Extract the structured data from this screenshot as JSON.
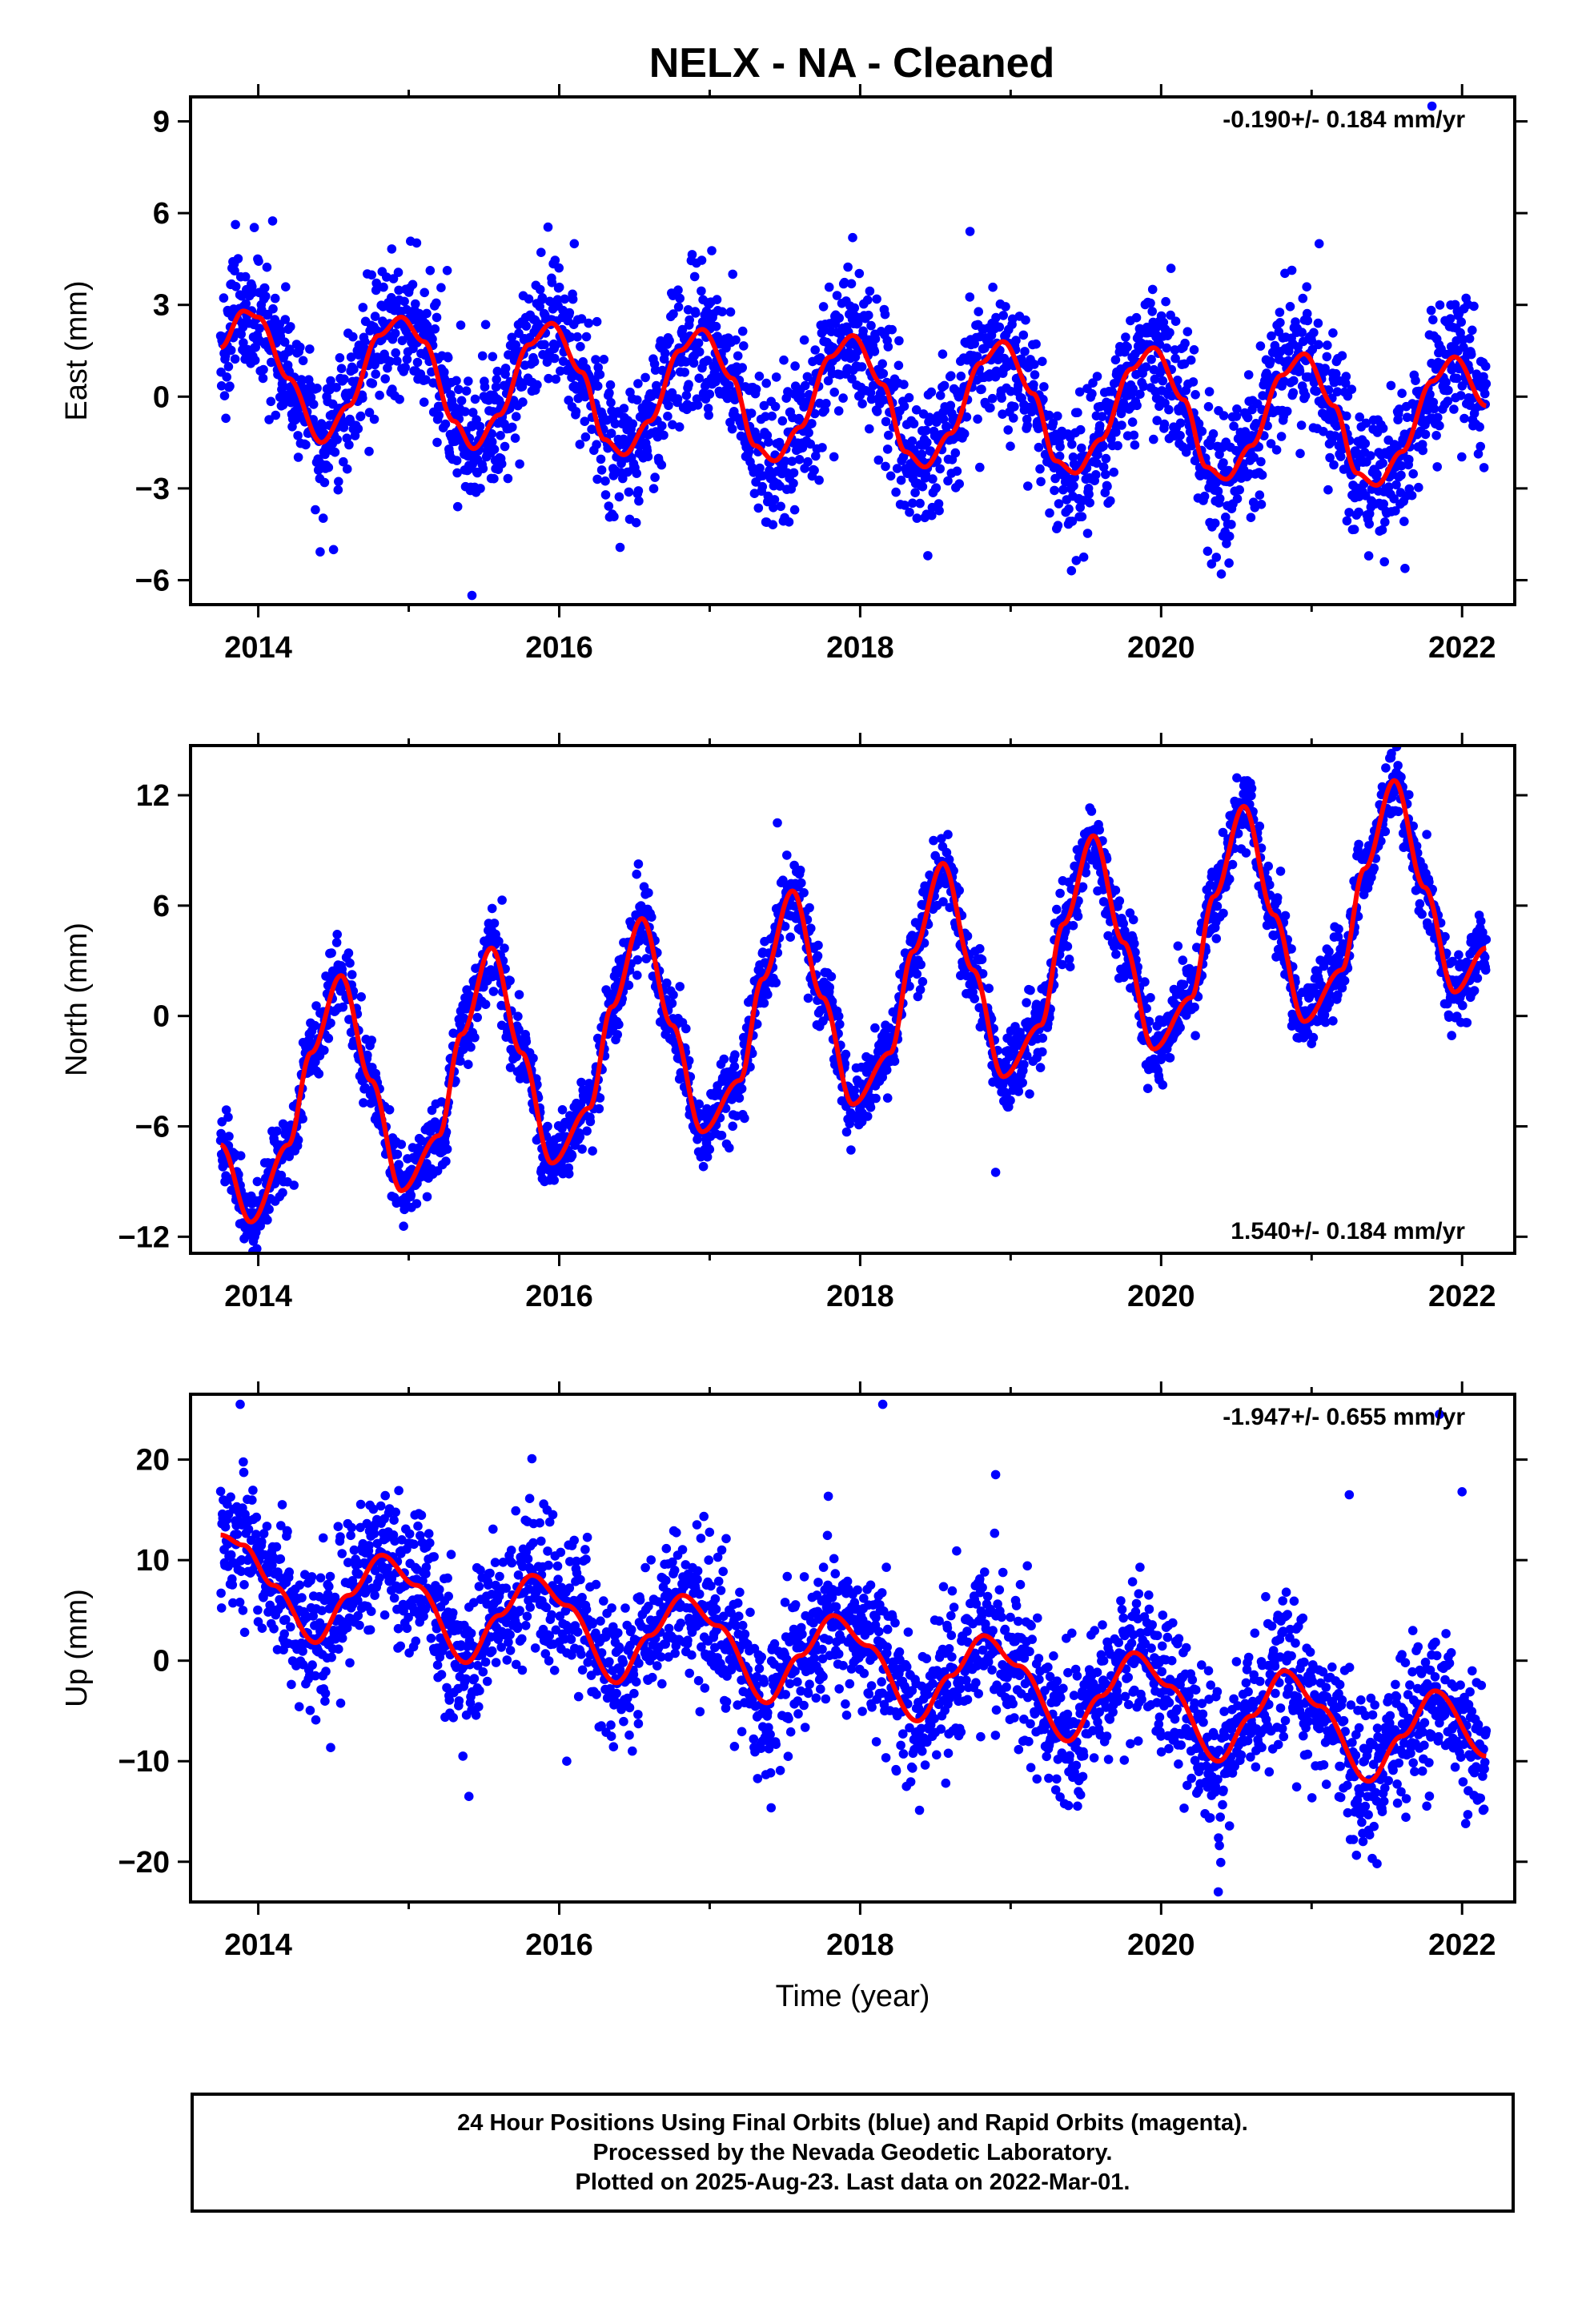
{
  "title": "NELX  - NA - Cleaned",
  "footer": {
    "lines": [
      "24 Hour Positions Using Final Orbits (blue) and Rapid Orbits (magenta).",
      "Processed by the Nevada Geodetic Laboratory.",
      "Plotted on 2025-Aug-23. Last data on 2022-Mar-01."
    ]
  },
  "colors": {
    "points": "#0000ff",
    "fit": "#ff0000",
    "axes": "#000000"
  },
  "chart_data": [
    {
      "type": "scatter",
      "panel": "east",
      "ylabel": "East (mm)",
      "xlabel": "",
      "xlim": [
        2013.55,
        2022.35
      ],
      "ylim": [
        -6.8,
        9.8
      ],
      "xticks": [
        2014,
        2016,
        2018,
        2020,
        2022
      ],
      "yticks": [
        -6,
        -3,
        0,
        3,
        6,
        9
      ],
      "ytick_labels": [
        "−6",
        "−3",
        "0",
        "3",
        "6",
        "9"
      ],
      "rate_label": "-0.190+/- 0.184 mm/yr",
      "rate_position": "top-right",
      "data_span": [
        2013.75,
        2022.16
      ],
      "series": [
        {
          "name": "",
          "kind": "fit",
          "x": [
            2013.75,
            2013.9,
            2014.0,
            2014.2,
            2014.42,
            2014.6,
            2014.8,
            2014.95,
            2015.1,
            2015.3,
            2015.43,
            2015.6,
            2015.8,
            2015.95,
            2016.15,
            2016.3,
            2016.43,
            2016.6,
            2016.8,
            2016.95,
            2017.15,
            2017.3,
            2017.43,
            2017.6,
            2017.8,
            2017.95,
            2018.15,
            2018.3,
            2018.43,
            2018.6,
            2018.8,
            2018.95,
            2019.15,
            2019.3,
            2019.43,
            2019.6,
            2019.8,
            2019.95,
            2020.15,
            2020.3,
            2020.43,
            2020.6,
            2020.8,
            2020.95,
            2021.15,
            2021.3,
            2021.43,
            2021.6,
            2021.8,
            2021.95,
            2022.16
          ],
          "y": [
            1.6,
            2.8,
            2.6,
            0.6,
            -1.5,
            -0.3,
            2.0,
            2.6,
            1.8,
            -0.8,
            -1.7,
            -0.6,
            1.7,
            2.4,
            0.8,
            -1.4,
            -1.9,
            -0.8,
            1.5,
            2.2,
            0.6,
            -1.6,
            -2.1,
            -1.0,
            1.3,
            2.0,
            0.4,
            -1.8,
            -2.3,
            -1.2,
            1.1,
            1.8,
            0.1,
            -2.1,
            -2.5,
            -1.4,
            0.9,
            1.6,
            -0.1,
            -2.3,
            -2.7,
            -1.6,
            0.7,
            1.4,
            -0.3,
            -2.5,
            -2.9,
            -1.8,
            0.5,
            1.3,
            -0.3
          ]
        }
      ],
      "scatter": {
        "name": "",
        "kind": "points",
        "noise_sd": 1.15,
        "outliers": [
          [
            2015.42,
            -6.5
          ],
          [
            2014.5,
            -5.0
          ],
          [
            2016.1,
            5.0
          ],
          [
            2017.95,
            5.2
          ],
          [
            2021.05,
            5.0
          ],
          [
            2020.4,
            -5.8
          ],
          [
            2021.8,
            9.5
          ],
          [
            2018.73,
            5.4
          ]
        ]
      }
    },
    {
      "type": "scatter",
      "panel": "north",
      "ylabel": "North (mm)",
      "xlabel": "",
      "xlim": [
        2013.55,
        2022.35
      ],
      "ylim": [
        -12.9,
        14.7
      ],
      "xticks": [
        2014,
        2016,
        2018,
        2020,
        2022
      ],
      "yticks": [
        -12,
        -6,
        0,
        6,
        12
      ],
      "ytick_labels": [
        "−12",
        "−6",
        "0",
        "6",
        "12"
      ],
      "rate_label": "1.540+/- 0.184 mm/yr",
      "rate_position": "bottom-right",
      "data_span": [
        2013.75,
        2022.16
      ],
      "series": [
        {
          "name": "",
          "kind": "fit",
          "x": [
            2013.75,
            2013.95,
            2014.2,
            2014.35,
            2014.55,
            2014.75,
            2014.95,
            2015.2,
            2015.35,
            2015.55,
            2015.75,
            2015.95,
            2016.2,
            2016.35,
            2016.55,
            2016.75,
            2016.95,
            2017.2,
            2017.35,
            2017.55,
            2017.75,
            2017.95,
            2018.2,
            2018.35,
            2018.55,
            2018.75,
            2018.95,
            2019.2,
            2019.35,
            2019.55,
            2019.75,
            2019.95,
            2020.2,
            2020.35,
            2020.55,
            2020.75,
            2020.95,
            2021.2,
            2021.35,
            2021.55,
            2021.75,
            2021.95,
            2022.16
          ],
          "y": [
            -7.0,
            -11.2,
            -7.0,
            -2.0,
            2.2,
            -3.5,
            -9.5,
            -6.5,
            -1.0,
            3.7,
            -2.0,
            -8.0,
            -5.0,
            0.5,
            5.3,
            -0.5,
            -6.3,
            -3.5,
            2.0,
            6.8,
            1.0,
            -4.8,
            -2.0,
            3.5,
            8.3,
            2.5,
            -3.3,
            -0.5,
            5.0,
            9.8,
            4.0,
            -1.8,
            1.0,
            6.5,
            11.4,
            5.5,
            -0.3,
            2.5,
            8.0,
            12.8,
            7.0,
            1.3,
            3.7
          ]
        }
      ],
      "scatter": {
        "name": "",
        "kind": "points",
        "noise_sd": 1.0,
        "outliers": [
          [
            2013.8,
            -5.5
          ],
          [
            2018.9,
            -8.5
          ],
          [
            2015.62,
            6.3
          ],
          [
            2017.45,
            10.5
          ]
        ]
      }
    },
    {
      "type": "scatter",
      "panel": "up",
      "ylabel": "Up (mm)",
      "xlabel": "Time (year)",
      "xlim": [
        2013.55,
        2022.35
      ],
      "ylim": [
        -24.0,
        26.5
      ],
      "xticks": [
        2014,
        2016,
        2018,
        2020,
        2022
      ],
      "yticks": [
        -20,
        -10,
        0,
        10,
        20
      ],
      "ytick_labels": [
        "−20",
        "−10",
        "0",
        "10",
        "20"
      ],
      "rate_label": "-1.947+/- 0.655 mm/yr",
      "rate_position": "top-right",
      "data_span": [
        2013.75,
        2022.16
      ],
      "series": [
        {
          "name": "",
          "kind": "fit",
          "x": [
            2013.75,
            2013.9,
            2014.1,
            2014.38,
            2014.6,
            2014.82,
            2015.05,
            2015.38,
            2015.6,
            2015.82,
            2016.05,
            2016.38,
            2016.6,
            2016.82,
            2017.05,
            2017.38,
            2017.6,
            2017.82,
            2018.05,
            2018.38,
            2018.6,
            2018.82,
            2019.05,
            2019.38,
            2019.6,
            2019.82,
            2020.05,
            2020.38,
            2020.6,
            2020.82,
            2021.05,
            2021.38,
            2021.6,
            2021.82,
            2022.16
          ],
          "y": [
            12.5,
            11.5,
            7.5,
            1.8,
            6.5,
            10.5,
            7.5,
            -0.2,
            4.5,
            8.5,
            5.5,
            -2.2,
            2.5,
            6.5,
            3.5,
            -4.2,
            0.5,
            4.5,
            1.5,
            -6.0,
            -1.5,
            2.5,
            -0.5,
            -8.0,
            -3.5,
            0.8,
            -2.5,
            -10.0,
            -5.5,
            -1.0,
            -4.5,
            -12.0,
            -7.5,
            -3.0,
            -9.5
          ]
        }
      ],
      "scatter": {
        "name": "",
        "kind": "points",
        "noise_sd": 3.6,
        "outliers": [
          [
            2013.88,
            25.5
          ],
          [
            2018.15,
            25.5
          ],
          [
            2021.85,
            24.5
          ],
          [
            2015.4,
            -13.5
          ],
          [
            2020.38,
            -23.0
          ],
          [
            2018.9,
            18.5
          ],
          [
            2021.25,
            16.5
          ],
          [
            2022.0,
            16.8
          ],
          [
            2016.05,
            -10.0
          ]
        ]
      }
    }
  ]
}
